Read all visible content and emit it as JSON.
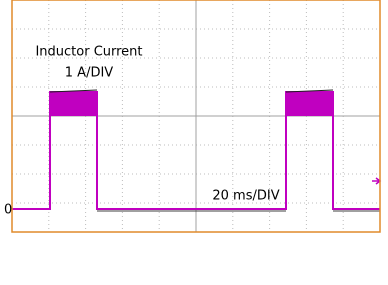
{
  "scope": {
    "trace_label": "Inductor Current",
    "vertical_scale": "1 A/DIV",
    "horizontal_scale": "20 ms/DIV",
    "zero_marker": "0"
  }
}
